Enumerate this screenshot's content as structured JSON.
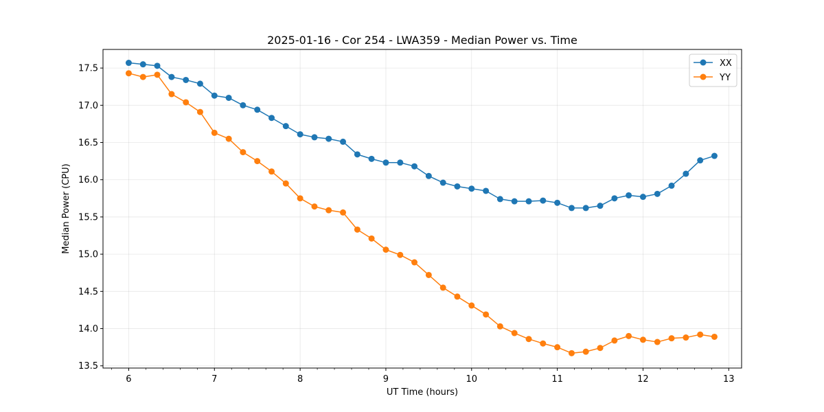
{
  "chart_data": {
    "type": "line",
    "title": "2025-01-16 - Cor 254 - LWA359 - Median Power vs. Time",
    "xlabel": "UT Time (hours)",
    "ylabel": "Median Power (CPU)",
    "xlim": [
      5.7,
      13.15
    ],
    "ylim": [
      13.47,
      17.75
    ],
    "x_ticks": [
      6,
      7,
      8,
      9,
      10,
      11,
      12,
      13
    ],
    "x_tick_labels": [
      "6",
      "7",
      "8",
      "9",
      "10",
      "11",
      "12",
      "13"
    ],
    "y_ticks": [
      13.5,
      14.0,
      14.5,
      15.0,
      15.5,
      16.0,
      16.5,
      17.0,
      17.5
    ],
    "y_tick_labels": [
      "13.5",
      "14.0",
      "14.5",
      "15.0",
      "15.5",
      "16.0",
      "16.5",
      "17.0",
      "17.5"
    ],
    "grid": true,
    "legend_position": "top-right",
    "x": [
      6.0,
      6.167,
      6.333,
      6.5,
      6.667,
      6.833,
      7.0,
      7.167,
      7.333,
      7.5,
      7.667,
      7.833,
      8.0,
      8.167,
      8.333,
      8.5,
      8.667,
      8.833,
      9.0,
      9.167,
      9.333,
      9.5,
      9.667,
      9.833,
      10.0,
      10.167,
      10.333,
      10.5,
      10.667,
      10.833,
      11.0,
      11.167,
      11.333,
      11.5,
      11.667,
      11.833,
      12.0,
      12.167,
      12.333,
      12.5,
      12.667,
      12.833
    ],
    "series": [
      {
        "name": "XX",
        "color": "#1f77b4",
        "values": [
          17.57,
          17.55,
          17.53,
          17.38,
          17.34,
          17.29,
          17.13,
          17.1,
          17.0,
          16.94,
          16.83,
          16.72,
          16.61,
          16.57,
          16.55,
          16.51,
          16.34,
          16.28,
          16.23,
          16.23,
          16.18,
          16.05,
          15.96,
          15.91,
          15.88,
          15.85,
          15.74,
          15.71,
          15.71,
          15.72,
          15.69,
          15.62,
          15.62,
          15.65,
          15.75,
          15.79,
          15.77,
          15.81,
          15.92,
          16.08,
          16.26,
          16.32
        ]
      },
      {
        "name": "YY",
        "color": "#ff7f0e",
        "values": [
          17.43,
          17.38,
          17.41,
          17.15,
          17.04,
          16.91,
          16.63,
          16.55,
          16.37,
          16.25,
          16.11,
          15.95,
          15.75,
          15.64,
          15.59,
          15.56,
          15.33,
          15.21,
          15.06,
          14.99,
          14.89,
          14.72,
          14.55,
          14.43,
          14.31,
          14.19,
          14.03,
          13.94,
          13.86,
          13.8,
          13.75,
          13.67,
          13.69,
          13.74,
          13.84,
          13.9,
          13.85,
          13.82,
          13.87,
          13.88,
          13.92,
          13.89
        ]
      }
    ]
  }
}
